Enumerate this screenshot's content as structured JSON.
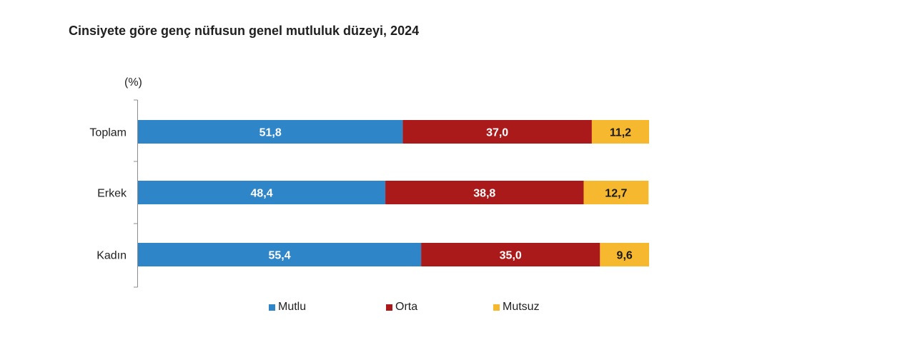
{
  "chart_data": {
    "type": "bar",
    "orientation": "horizontal",
    "stacked": true,
    "title": "Cinsiyete göre genç nüfusun genel mutluluk düzeyi, 2024",
    "unit_label": "(%)",
    "categories": [
      "Toplam",
      "Erkek",
      "Kadın"
    ],
    "series": [
      {
        "name": "Mutlu",
        "color": "#2e86c8",
        "values": [
          51.8,
          48.4,
          55.4
        ],
        "labels": [
          "51,8",
          "48,4",
          "55,4"
        ]
      },
      {
        "name": "Orta",
        "color": "#ab1a1a",
        "values": [
          37.0,
          38.8,
          35.0
        ],
        "labels": [
          "37,0",
          "38,8",
          "35,0"
        ]
      },
      {
        "name": "Mutsuz",
        "color": "#f5b82e",
        "values": [
          11.2,
          12.7,
          9.6
        ],
        "labels": [
          "11,2",
          "12,7",
          "9,6"
        ]
      }
    ],
    "xlim": [
      0,
      100
    ],
    "grid": false,
    "legend_position": "bottom"
  }
}
